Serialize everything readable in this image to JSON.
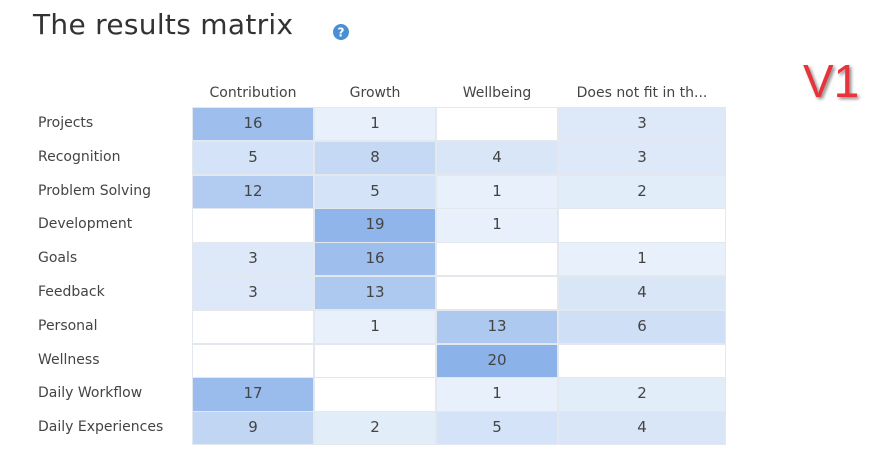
{
  "header": {
    "title": "The results matrix",
    "badge": "V1"
  },
  "table": {
    "columns": [
      "Contribution",
      "Growth",
      "Wellbeing",
      "Does not fit in th..."
    ],
    "rows": [
      {
        "label": "Projects",
        "cells": [
          16,
          1,
          null,
          3
        ]
      },
      {
        "label": "Recognition",
        "cells": [
          5,
          8,
          4,
          3
        ]
      },
      {
        "label": "Problem Solving",
        "cells": [
          12,
          5,
          1,
          2
        ]
      },
      {
        "label": "Development",
        "cells": [
          null,
          19,
          1,
          null
        ]
      },
      {
        "label": "Goals",
        "cells": [
          3,
          16,
          null,
          1
        ]
      },
      {
        "label": "Feedback",
        "cells": [
          3,
          13,
          null,
          4
        ]
      },
      {
        "label": "Personal",
        "cells": [
          null,
          1,
          13,
          6
        ]
      },
      {
        "label": "Wellness",
        "cells": [
          null,
          null,
          20,
          null
        ]
      },
      {
        "label": "Daily Workflow",
        "cells": [
          17,
          null,
          1,
          2
        ]
      },
      {
        "label": "Daily Experiences",
        "cells": [
          9,
          2,
          5,
          4
        ]
      }
    ]
  }
}
